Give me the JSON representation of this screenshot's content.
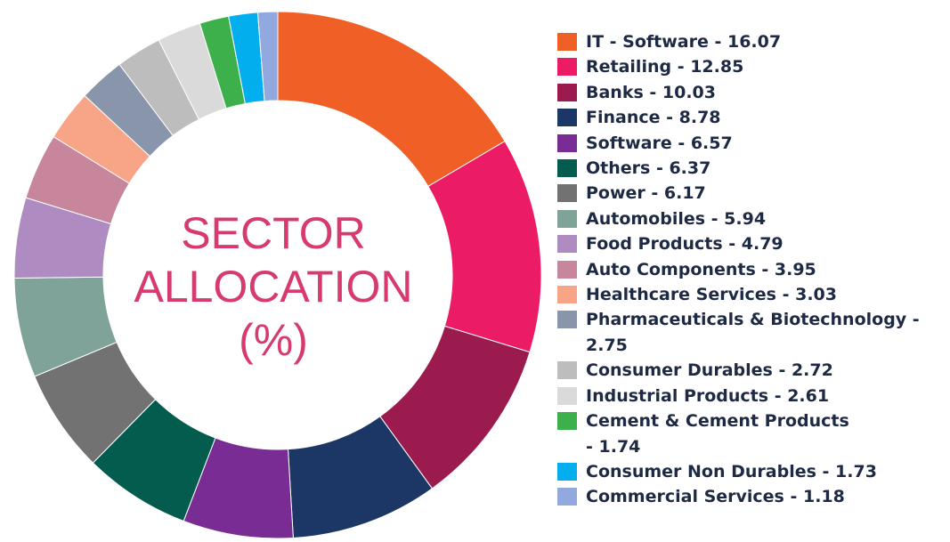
{
  "chart_data": {
    "type": "pie",
    "title_lines": [
      "SECTOR",
      "ALLOCATION",
      "(%)"
    ],
    "legend_position": "right",
    "series": [
      {
        "name": "IT - Software",
        "value": 16.07,
        "label": "IT - Software - 16.07",
        "color": "#f05f26"
      },
      {
        "name": "Retailing",
        "value": 12.85,
        "label": "Retailing - 12.85",
        "color": "#ec1b66"
      },
      {
        "name": "Banks",
        "value": 10.03,
        "label": "Banks - 10.03",
        "color": "#9b1b4e"
      },
      {
        "name": "Finance",
        "value": 8.78,
        "label": "Finance - 8.78",
        "color": "#1c3766"
      },
      {
        "name": "Software",
        "value": 6.57,
        "label": "Software - 6.57",
        "color": "#7a2c95"
      },
      {
        "name": "Others",
        "value": 6.37,
        "label": "Others - 6.37",
        "color": "#035c4d"
      },
      {
        "name": "Power",
        "value": 6.17,
        "label": "Power - 6.17",
        "color": "#727272"
      },
      {
        "name": "Automobiles",
        "value": 5.94,
        "label": "Automobiles - 5.94",
        "color": "#7fa398"
      },
      {
        "name": "Food Products",
        "value": 4.79,
        "label": "Food Products - 4.79",
        "color": "#ae8bc0"
      },
      {
        "name": "Auto Components",
        "value": 3.95,
        "label": "Auto Components - 3.95",
        "color": "#c7869b"
      },
      {
        "name": "Healthcare Services",
        "value": 3.03,
        "label": "Healthcare Services - 3.03",
        "color": "#f8a487"
      },
      {
        "name": "Pharmaceuticals & Biotechnology",
        "value": 2.75,
        "label": "Pharmaceuticals & Biotechnology - 2.75",
        "color": "#8895ab"
      },
      {
        "name": "Consumer Durables",
        "value": 2.72,
        "label": "Consumer Durables - 2.72",
        "color": "#bdbdbd"
      },
      {
        "name": "Industrial Products",
        "value": 2.61,
        "label": "Industrial Products - 2.61",
        "color": "#dadada"
      },
      {
        "name": "Cement & Cement Products",
        "value": 1.74,
        "label": "Cement & Cement Products - 1.74",
        "color": "#3db04b"
      },
      {
        "name": "Consumer Non Durables",
        "value": 1.73,
        "label": "Consumer Non Durables - 1.73",
        "color": "#03aeef"
      },
      {
        "name": "Commercial Services",
        "value": 1.18,
        "label": "Commercial Services - 1.18",
        "color": "#92a9df"
      }
    ]
  }
}
